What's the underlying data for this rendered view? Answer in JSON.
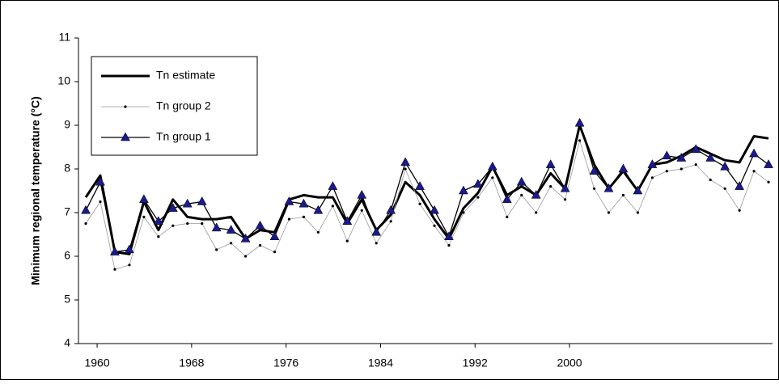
{
  "chart_data": {
    "type": "line",
    "y_label": "Minimum regional temperature (°C)",
    "x": [
      1959.04,
      1960.27,
      1961.5,
      1962.73,
      1963.96,
      1965.19,
      1966.42,
      1967.65,
      1968.88,
      1970.11,
      1971.34,
      1972.57,
      1973.8,
      1975.03,
      1976.26,
      1977.49,
      1978.72,
      1979.95,
      1981.18,
      1982.41,
      1983.64,
      1984.87,
      1986.1,
      1987.33,
      1988.56,
      1989.79,
      1991.02,
      1992.25,
      1993.48,
      1994.71,
      1995.94,
      1997.17,
      1998.4,
      1999.63,
      2000.86,
      2002.09,
      2003.32,
      2004.55,
      2005.78,
      2007.01,
      2008.24,
      2009.47,
      2010.7,
      2011.93,
      2013.16,
      2014.39,
      2015.62,
      2016.85
    ],
    "series": [
      {
        "name": "Tn estimate",
        "color": "#000000",
        "line_width": 3,
        "marker": "none",
        "values": [
          7.35,
          7.85,
          6.1,
          6.05,
          7.25,
          6.6,
          7.3,
          6.9,
          6.85,
          6.85,
          6.9,
          6.4,
          6.6,
          6.55,
          7.3,
          7.4,
          7.35,
          7.35,
          6.75,
          7.3,
          6.6,
          6.95,
          7.7,
          7.4,
          6.85,
          6.4,
          7.1,
          7.45,
          8.05,
          7.4,
          7.6,
          7.4,
          7.9,
          7.55,
          9.0,
          8.1,
          7.55,
          7.95,
          7.5,
          8.1,
          8.15,
          8.3,
          8.5,
          8.35,
          8.2,
          8.15,
          8.75,
          8.7
        ]
      },
      {
        "name": "Tn group 2",
        "color": "#999999",
        "line_width": 0.8,
        "marker": "dot",
        "values": [
          6.75,
          7.25,
          5.7,
          5.8,
          6.9,
          6.45,
          6.7,
          6.75,
          6.75,
          6.15,
          6.3,
          6.0,
          6.25,
          6.1,
          6.85,
          6.9,
          6.55,
          7.15,
          6.35,
          7.05,
          6.3,
          6.8,
          8.0,
          7.2,
          6.7,
          6.25,
          7.0,
          7.35,
          7.8,
          6.9,
          7.4,
          7.0,
          7.6,
          7.3,
          8.65,
          7.55,
          7.0,
          7.4,
          7.0,
          7.8,
          7.95,
          8.0,
          8.1,
          7.75,
          7.55,
          7.05,
          7.95,
          7.7
        ]
      },
      {
        "name": "Tn group 1",
        "color": "#000000",
        "line_width": 1.3,
        "marker": "triangle",
        "marker_color": "#1a1a8c",
        "values": [
          7.05,
          7.7,
          6.1,
          6.15,
          7.3,
          6.8,
          7.1,
          7.2,
          7.25,
          6.65,
          6.6,
          6.4,
          6.7,
          6.45,
          7.25,
          7.2,
          7.05,
          7.6,
          6.8,
          7.4,
          6.55,
          7.05,
          8.15,
          7.6,
          7.05,
          6.45,
          7.5,
          7.65,
          8.05,
          7.3,
          7.7,
          7.4,
          8.1,
          7.55,
          9.05,
          7.95,
          7.55,
          8.0,
          7.5,
          8.1,
          8.3,
          8.25,
          8.45,
          8.25,
          8.05,
          7.6,
          8.35,
          8.1
        ]
      }
    ],
    "xlim": [
      1958.42,
      2017.19
    ],
    "xticks": [
      1960,
      1968,
      1976,
      1984,
      1992,
      2000
    ],
    "ylim": [
      4,
      11
    ],
    "yticks": [
      4,
      5,
      6,
      7,
      8,
      9,
      10,
      11
    ],
    "legend": "upper-left"
  }
}
